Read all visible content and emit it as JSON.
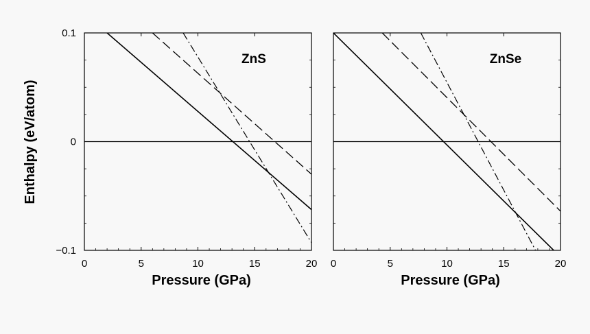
{
  "chart_data": [
    {
      "type": "line",
      "title": "ZnS",
      "xlabel": "Pressure (GPa)",
      "ylabel": "Enthalpy (eV/atom)",
      "xlim": [
        0,
        20
      ],
      "ylim": [
        -0.1,
        0.1
      ],
      "x_ticks": [
        "0",
        "5",
        "10",
        "15",
        "20"
      ],
      "y_ticks": [
        "0.1",
        "0",
        "−0.1"
      ],
      "series": [
        {
          "style": "solid",
          "x": [
            2,
            20
          ],
          "y": [
            0.1,
            -0.0625
          ]
        },
        {
          "style": "dashed",
          "x": [
            6,
            20
          ],
          "y": [
            0.1,
            -0.03
          ]
        },
        {
          "style": "dash-dot",
          "x": [
            8.7,
            20
          ],
          "y": [
            0.1,
            -0.093
          ]
        },
        {
          "style": "reference",
          "x": [
            0,
            20
          ],
          "y": [
            0,
            0
          ]
        }
      ]
    },
    {
      "type": "line",
      "title": "ZnSe",
      "xlabel": "Pressure (GPa)",
      "ylabel": "",
      "xlim": [
        0,
        20
      ],
      "ylim": [
        -0.1,
        0.1
      ],
      "x_ticks": [
        "0",
        "5",
        "10",
        "15",
        "20"
      ],
      "y_ticks": [],
      "series": [
        {
          "style": "solid",
          "x": [
            0,
            19.4
          ],
          "y": [
            0.1,
            -0.1
          ]
        },
        {
          "style": "dashed",
          "x": [
            4.3,
            20
          ],
          "y": [
            0.1,
            -0.064
          ]
        },
        {
          "style": "dash-dot",
          "x": [
            7.7,
            17.8
          ],
          "y": [
            0.1,
            -0.1
          ]
        },
        {
          "style": "reference",
          "x": [
            0,
            20
          ],
          "y": [
            0,
            0
          ]
        }
      ]
    }
  ]
}
